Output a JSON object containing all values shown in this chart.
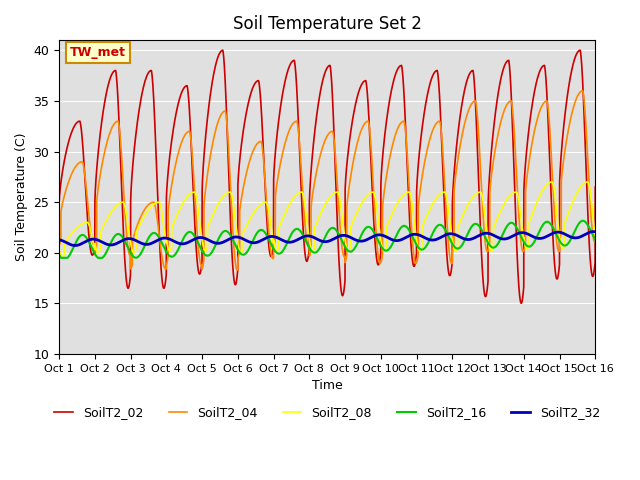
{
  "title": "Soil Temperature Set 2",
  "xlabel": "Time",
  "ylabel": "Soil Temperature (C)",
  "ylim": [
    10,
    41
  ],
  "yticks": [
    10,
    15,
    20,
    25,
    30,
    35,
    40
  ],
  "xlim_days": 15,
  "background_color": "#e0e0e0",
  "annotation_text": "TW_met",
  "annotation_bg": "#ffffcc",
  "annotation_border": "#cc8800",
  "series_colors": {
    "SoilT2_02": "#cc0000",
    "SoilT2_04": "#ff8800",
    "SoilT2_08": "#ffff00",
    "SoilT2_16": "#00cc00",
    "SoilT2_32": "#0000bb"
  },
  "series_linewidths": {
    "SoilT2_02": 1.2,
    "SoilT2_04": 1.2,
    "SoilT2_08": 1.2,
    "SoilT2_16": 1.5,
    "SoilT2_32": 2.0
  },
  "n_days": 15,
  "samples_per_day": 288,
  "tick_labels": [
    "Oct 1",
    "Oct 2",
    "Oct 3",
    "Oct 4",
    "Oct 5",
    "Oct 6",
    "Oct 7",
    "Oct 8",
    "Oct 9",
    "Oct 10",
    "Oct 11",
    "Oct 12",
    "Oct 13",
    "Oct 14",
    "Oct 15",
    "Oct 16"
  ],
  "legend_entries": [
    "SoilT2_02",
    "SoilT2_04",
    "SoilT2_08",
    "SoilT2_16",
    "SoilT2_32"
  ]
}
